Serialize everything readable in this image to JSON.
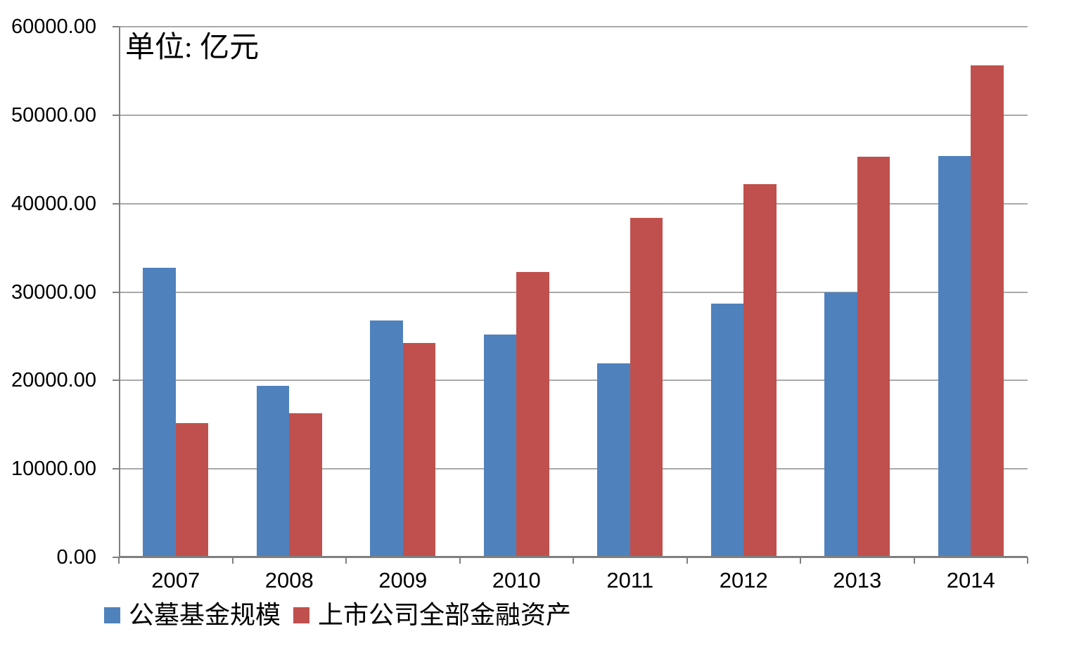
{
  "chart_data": {
    "type": "bar",
    "title": "",
    "unit_label": "单位: 亿元",
    "categories": [
      "2007",
      "2008",
      "2009",
      "2010",
      "2011",
      "2012",
      "2013",
      "2014"
    ],
    "series": [
      {
        "name": "公墓基金规模",
        "color": "#4F81BD",
        "values": [
          32750,
          19400,
          26800,
          25200,
          21900,
          28700,
          30000,
          45400
        ]
      },
      {
        "name": "上市公司全部金融资产",
        "color": "#C0504D",
        "values": [
          15200,
          16300,
          24200,
          32300,
          38400,
          42200,
          45300,
          55600
        ]
      }
    ],
    "xlabel": "",
    "ylabel": "",
    "y_axis": {
      "min": 0,
      "max": 60000,
      "step": 10000,
      "tick_labels": [
        "0.00",
        "10000.00",
        "20000.00",
        "30000.00",
        "40000.00",
        "50000.00",
        "60000.00"
      ]
    },
    "grid": true,
    "legend_position": "bottom-left",
    "colors": {
      "gridline": "#A9A9A9",
      "axis": "#7F7F7F",
      "text": "#000000",
      "background": "#FFFFFF"
    }
  }
}
